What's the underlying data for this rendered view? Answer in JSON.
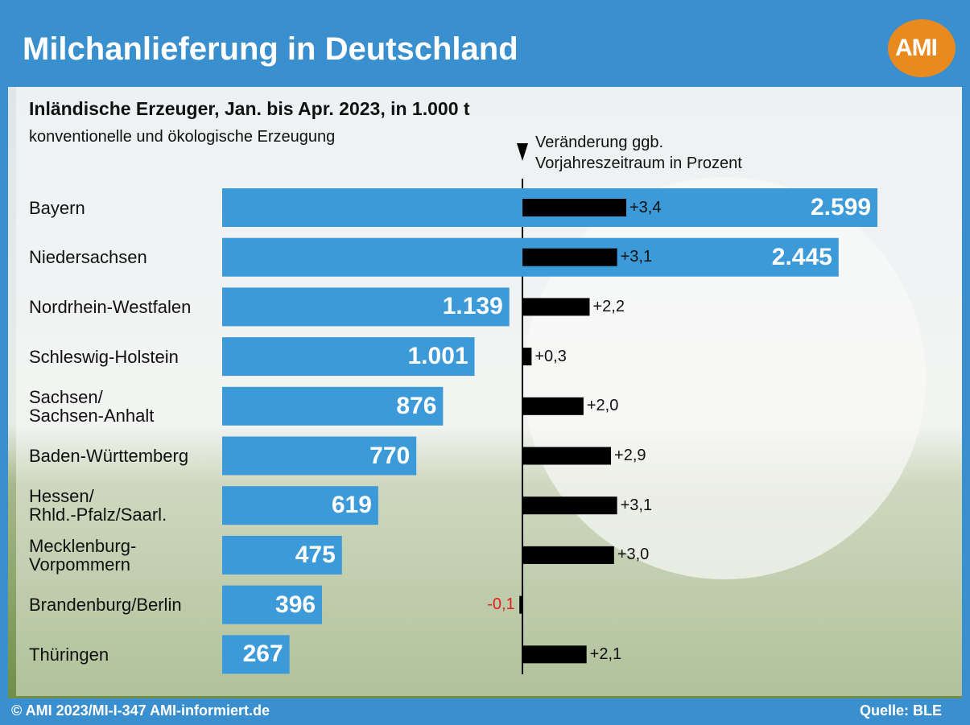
{
  "chart_data": {
    "type": "bar",
    "title": "Milchanlieferung in Deutschland",
    "logo": "AMI",
    "subtitle": "Inländische Erzeuger, Jan. bis Apr. 2023, in 1.000 t",
    "note": "konventionelle und ökologische Erzeugung",
    "change_label": "Veränderung ggb.\nVorjahreszeitraum  in Prozent",
    "categories": [
      "Bayern",
      "Niedersachsen",
      "Nordrhein-Westfalen",
      "Schleswig-Holstein",
      "Sachsen/\nSachsen-Anhalt",
      "Baden-Württemberg",
      "Hessen/\nRhld.-Pfalz/Saarl.",
      "Mecklenburg-\nVorpommern",
      "Brandenburg/Berlin",
      "Thüringen"
    ],
    "series": [
      {
        "color": "#3d9ad9",
        "values": [
          2599,
          2445,
          1139,
          1001,
          876,
          770,
          619,
          475,
          396,
          267
        ],
        "value_labels": [
          "2.599",
          "2.445",
          "1.139",
          "1.001",
          "876",
          "770",
          "619",
          "475",
          "396",
          "267"
        ]
      },
      {
        "color": "#000000",
        "negative_label_color": "#e0201b",
        "values": [
          3.4,
          3.1,
          2.2,
          0.3,
          2.0,
          2.9,
          3.1,
          3.0,
          -0.1,
          2.1
        ],
        "value_labels": [
          "+3,4",
          "+3,1",
          "+2,2",
          "+0,3",
          "+2,0",
          "+2,9",
          "+3,1",
          "+3,0",
          "-0,1",
          "+2,1"
        ]
      }
    ],
    "footer": "© AMI 2023/MI-I-347 AMI-informiert.de",
    "source": "Quelle: BLE"
  }
}
